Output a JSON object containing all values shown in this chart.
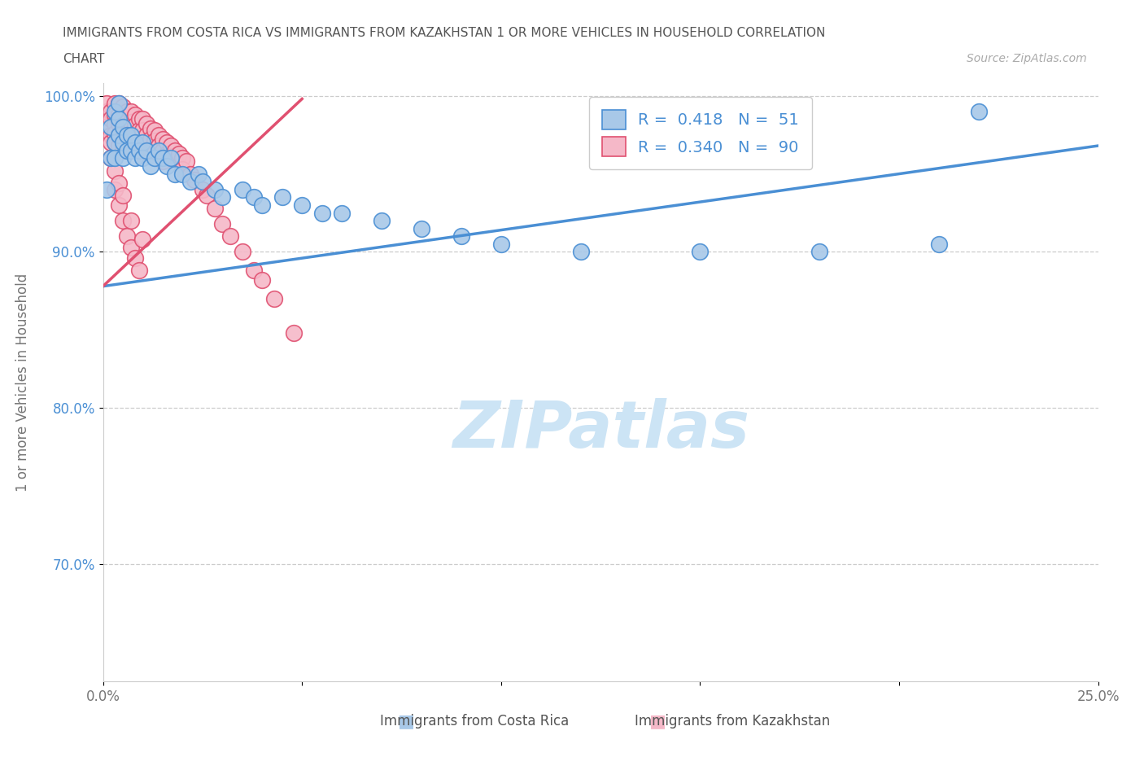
{
  "title_line1": "IMMIGRANTS FROM COSTA RICA VS IMMIGRANTS FROM KAZAKHSTAN 1 OR MORE VEHICLES IN HOUSEHOLD CORRELATION",
  "title_line2": "CHART",
  "source_text": "Source: ZipAtlas.com",
  "ylabel": "1 or more Vehicles in Household",
  "legend_label_blue": "Immigrants from Costa Rica",
  "legend_label_pink": "Immigrants from Kazakhstan",
  "R_blue": 0.418,
  "N_blue": 51,
  "R_pink": 0.34,
  "N_pink": 90,
  "xmin": 0.0,
  "xmax": 0.25,
  "ymin": 0.625,
  "ymax": 1.008,
  "yticks": [
    0.7,
    0.8,
    0.9,
    1.0
  ],
  "ytick_labels": [
    "70.0%",
    "80.0%",
    "90.0%",
    "100.0%"
  ],
  "xticks": [
    0.0,
    0.05,
    0.1,
    0.15,
    0.2,
    0.25
  ],
  "xtick_labels": [
    "0.0%",
    "",
    "",
    "",
    "",
    "25.0%"
  ],
  "blue_color": "#a8c8e8",
  "pink_color": "#f5b8c8",
  "line_blue_color": "#4a8fd4",
  "line_pink_color": "#e05070",
  "watermark_color": "#cce4f5",
  "background_color": "#ffffff",
  "blue_line_x0": 0.0,
  "blue_line_y0": 0.878,
  "blue_line_x1": 0.25,
  "blue_line_y1": 0.968,
  "pink_line_x0": 0.0,
  "pink_line_y0": 0.878,
  "pink_line_x1": 0.05,
  "pink_line_y1": 0.998,
  "costa_rica_x": [
    0.001,
    0.002,
    0.002,
    0.003,
    0.003,
    0.003,
    0.004,
    0.004,
    0.004,
    0.005,
    0.005,
    0.005,
    0.006,
    0.006,
    0.007,
    0.007,
    0.008,
    0.008,
    0.009,
    0.01,
    0.01,
    0.011,
    0.012,
    0.013,
    0.014,
    0.015,
    0.016,
    0.017,
    0.018,
    0.02,
    0.022,
    0.024,
    0.025,
    0.028,
    0.03,
    0.035,
    0.038,
    0.04,
    0.045,
    0.05,
    0.055,
    0.06,
    0.07,
    0.08,
    0.09,
    0.1,
    0.12,
    0.15,
    0.18,
    0.21,
    0.22
  ],
  "costa_rica_y": [
    0.94,
    0.96,
    0.98,
    0.97,
    0.96,
    0.99,
    0.985,
    0.975,
    0.995,
    0.98,
    0.97,
    0.96,
    0.975,
    0.965,
    0.975,
    0.965,
    0.97,
    0.96,
    0.965,
    0.97,
    0.96,
    0.965,
    0.955,
    0.96,
    0.965,
    0.96,
    0.955,
    0.96,
    0.95,
    0.95,
    0.945,
    0.95,
    0.945,
    0.94,
    0.935,
    0.94,
    0.935,
    0.93,
    0.935,
    0.93,
    0.925,
    0.925,
    0.92,
    0.915,
    0.91,
    0.905,
    0.9,
    0.9,
    0.9,
    0.905,
    0.99
  ],
  "kazakhstan_x": [
    0.001,
    0.001,
    0.001,
    0.002,
    0.002,
    0.002,
    0.002,
    0.003,
    0.003,
    0.003,
    0.003,
    0.003,
    0.004,
    0.004,
    0.004,
    0.004,
    0.004,
    0.005,
    0.005,
    0.005,
    0.005,
    0.005,
    0.006,
    0.006,
    0.006,
    0.006,
    0.007,
    0.007,
    0.007,
    0.007,
    0.008,
    0.008,
    0.008,
    0.008,
    0.009,
    0.009,
    0.009,
    0.01,
    0.01,
    0.01,
    0.01,
    0.011,
    0.011,
    0.011,
    0.012,
    0.012,
    0.012,
    0.013,
    0.013,
    0.013,
    0.014,
    0.014,
    0.015,
    0.015,
    0.015,
    0.016,
    0.016,
    0.017,
    0.017,
    0.018,
    0.018,
    0.019,
    0.02,
    0.02,
    0.021,
    0.022,
    0.023,
    0.025,
    0.026,
    0.028,
    0.03,
    0.032,
    0.035,
    0.038,
    0.04,
    0.043,
    0.048,
    0.003,
    0.004,
    0.005,
    0.006,
    0.007,
    0.008,
    0.009,
    0.002,
    0.003,
    0.004,
    0.005,
    0.007,
    0.01
  ],
  "kazakhstan_y": [
    0.99,
    0.98,
    0.995,
    0.99,
    0.985,
    0.975,
    0.97,
    0.995,
    0.988,
    0.982,
    0.976,
    0.97,
    0.995,
    0.988,
    0.982,
    0.975,
    0.968,
    0.993,
    0.986,
    0.979,
    0.972,
    0.965,
    0.99,
    0.983,
    0.976,
    0.969,
    0.99,
    0.983,
    0.976,
    0.969,
    0.988,
    0.981,
    0.974,
    0.967,
    0.985,
    0.978,
    0.971,
    0.985,
    0.978,
    0.97,
    0.963,
    0.982,
    0.975,
    0.968,
    0.979,
    0.972,
    0.965,
    0.978,
    0.971,
    0.964,
    0.975,
    0.968,
    0.972,
    0.965,
    0.958,
    0.97,
    0.963,
    0.968,
    0.961,
    0.965,
    0.958,
    0.963,
    0.96,
    0.953,
    0.958,
    0.95,
    0.946,
    0.94,
    0.936,
    0.928,
    0.918,
    0.91,
    0.9,
    0.888,
    0.882,
    0.87,
    0.848,
    0.94,
    0.93,
    0.92,
    0.91,
    0.903,
    0.896,
    0.888,
    0.96,
    0.952,
    0.944,
    0.936,
    0.92,
    0.908
  ]
}
